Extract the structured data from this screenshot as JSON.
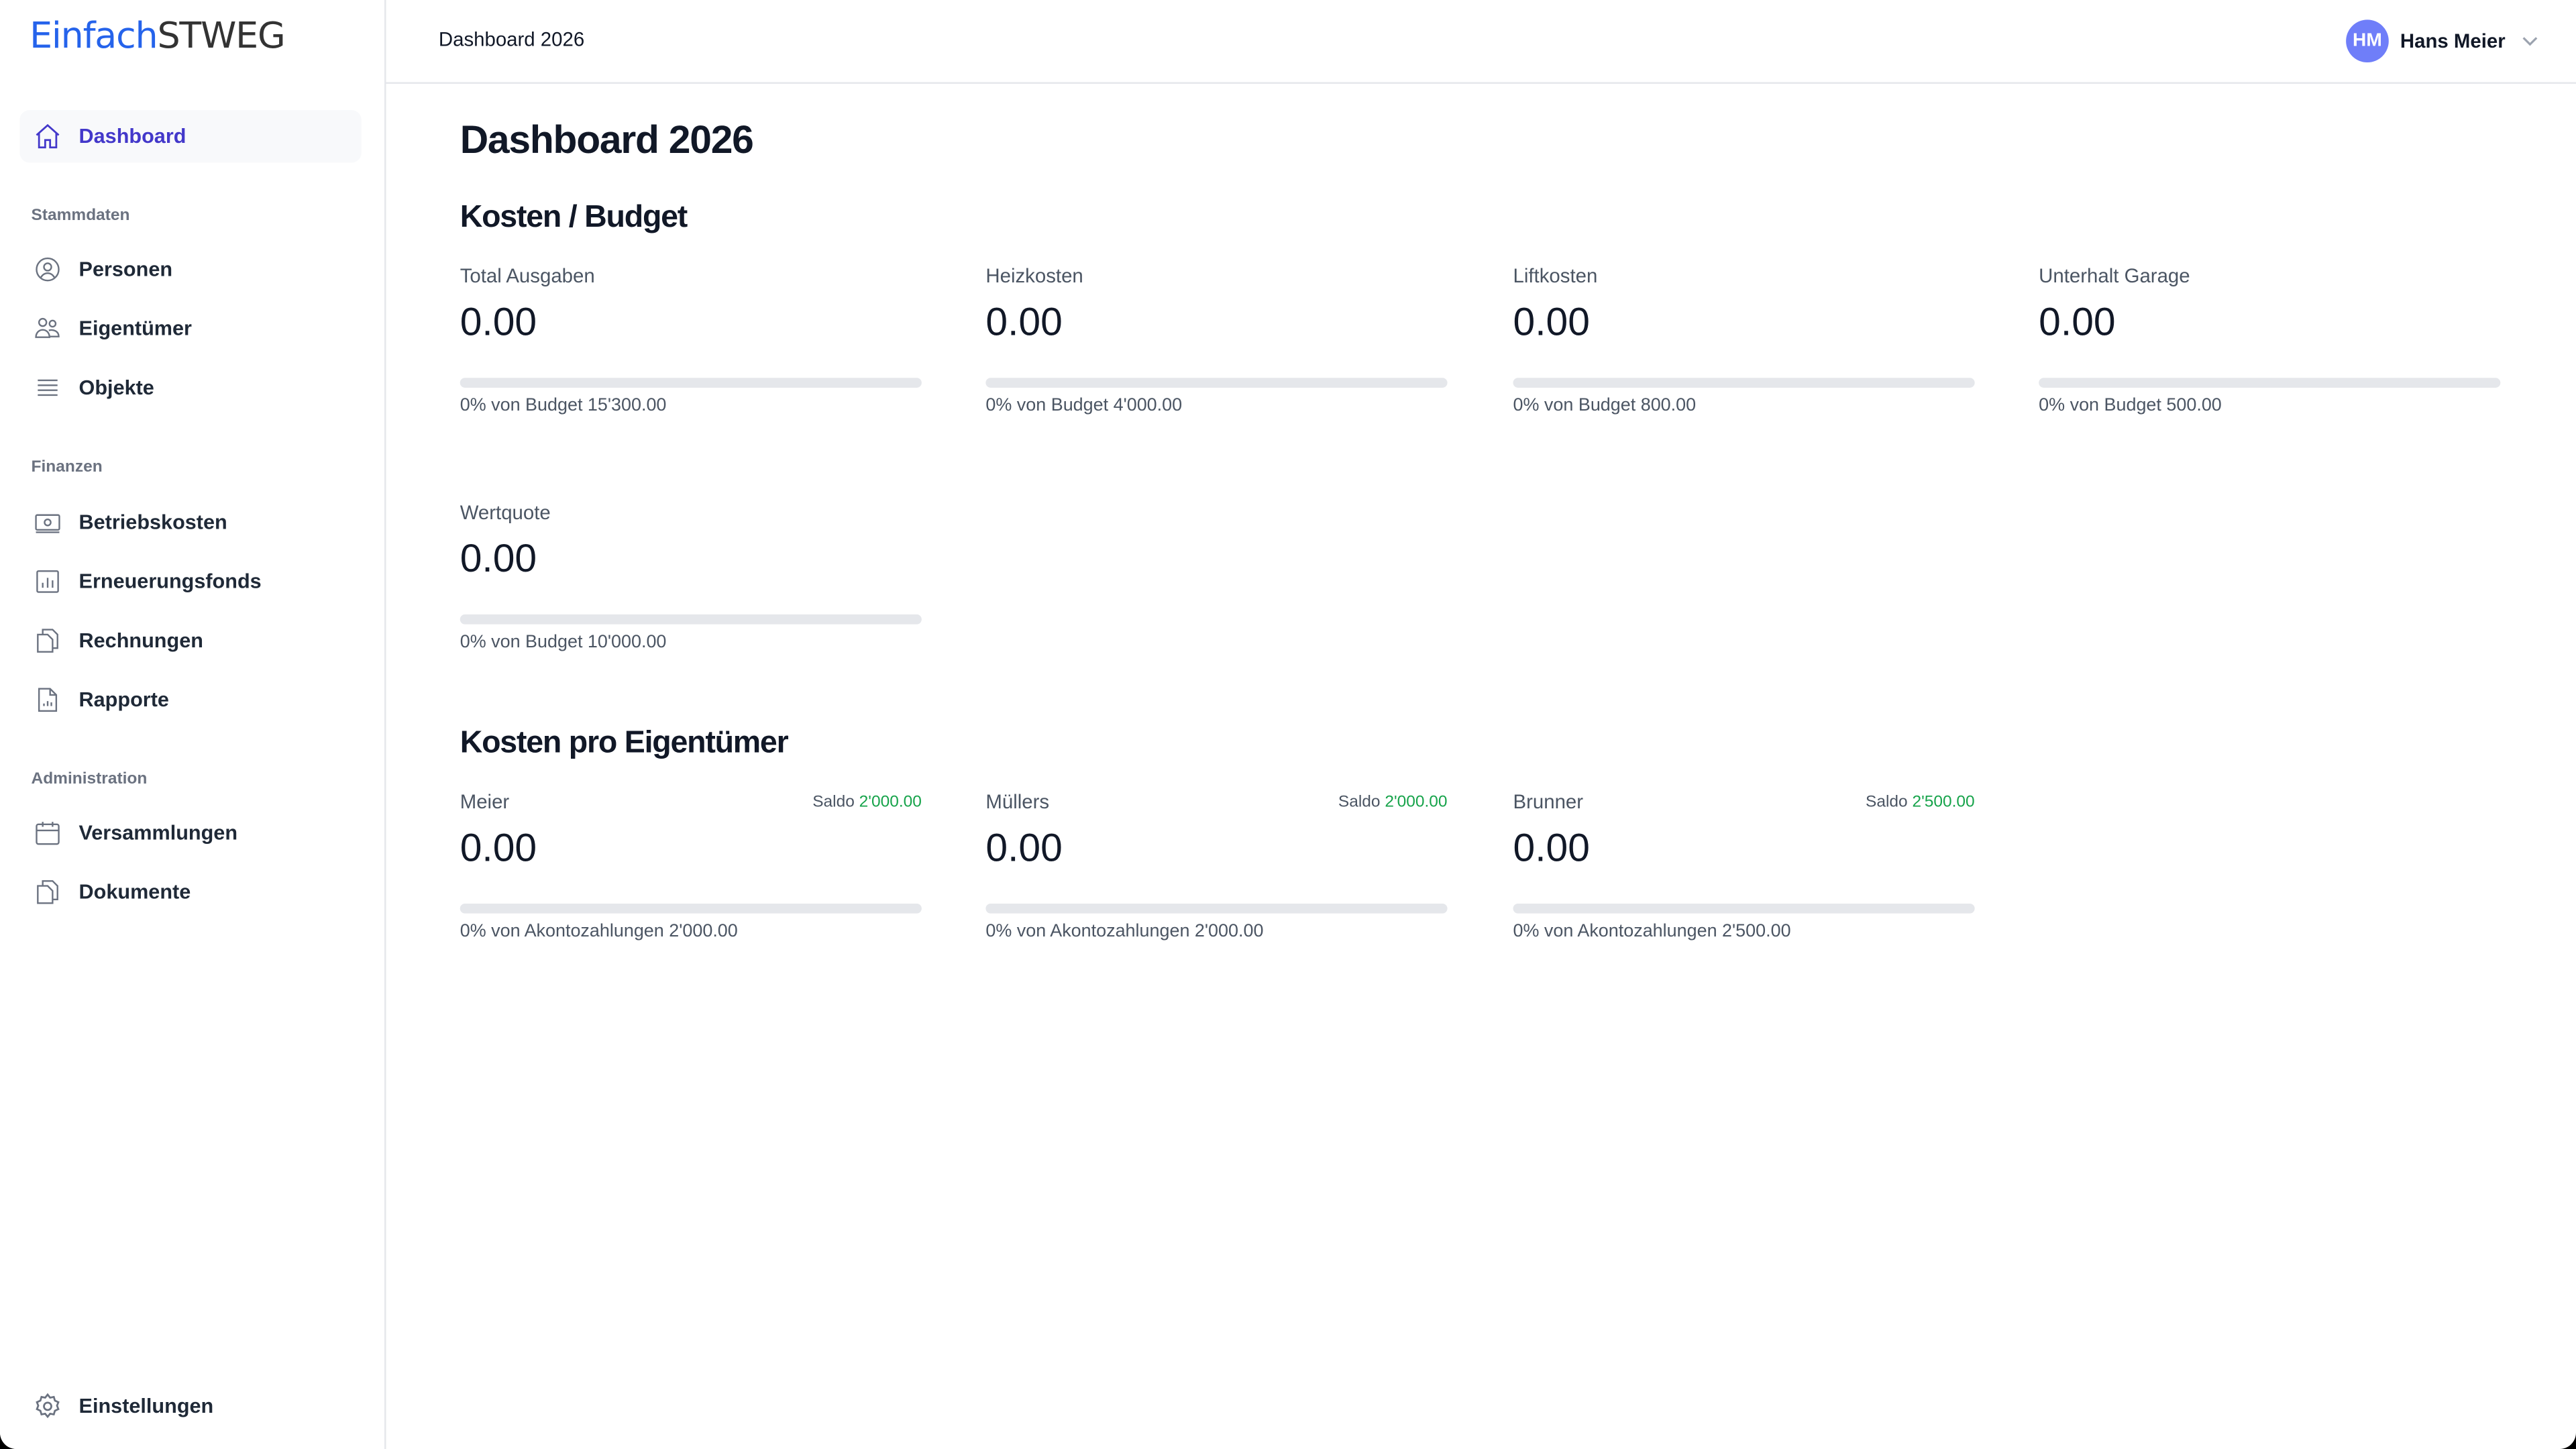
{
  "app": {
    "logo_part1": "Einfach",
    "logo_part2": "STWEG"
  },
  "sidebar": {
    "dashboard": "Dashboard",
    "sections": [
      {
        "label": "Stammdaten",
        "items": [
          {
            "label": "Personen",
            "icon": "user-circle-icon"
          },
          {
            "label": "Eigentümer",
            "icon": "users-icon"
          },
          {
            "label": "Objekte",
            "icon": "list-icon"
          }
        ]
      },
      {
        "label": "Finanzen",
        "items": [
          {
            "label": "Betriebskosten",
            "icon": "banknote-icon"
          },
          {
            "label": "Erneuerungsfonds",
            "icon": "chart-bar-icon"
          },
          {
            "label": "Rechnungen",
            "icon": "documents-icon"
          },
          {
            "label": "Rapporte",
            "icon": "document-chart-icon"
          }
        ]
      },
      {
        "label": "Administration",
        "items": [
          {
            "label": "Versammlungen",
            "icon": "calendar-icon"
          },
          {
            "label": "Dokumente",
            "icon": "documents-icon"
          }
        ]
      }
    ],
    "settings": "Einstellungen"
  },
  "header": {
    "breadcrumb": "Dashboard 2026",
    "user_initials": "HM",
    "user_name": "Hans Meier"
  },
  "main": {
    "title": "Dashboard 2026",
    "budget_heading": "Kosten / Budget",
    "budget_cards": [
      {
        "label": "Total Ausgaben",
        "value": "0.00",
        "percent": 0,
        "caption": "0% von Budget 15'300.00"
      },
      {
        "label": "Heizkosten",
        "value": "0.00",
        "percent": 0,
        "caption": "0% von Budget 4'000.00"
      },
      {
        "label": "Liftkosten",
        "value": "0.00",
        "percent": 0,
        "caption": "0% von Budget 800.00"
      },
      {
        "label": "Unterhalt Garage",
        "value": "0.00",
        "percent": 0,
        "caption": "0% von Budget 500.00"
      },
      {
        "label": "Wertquote",
        "value": "0.00",
        "percent": 0,
        "caption": "0% von Budget 10'000.00"
      }
    ],
    "owner_heading": "Kosten pro Eigentümer",
    "owner_cards": [
      {
        "label": "Meier",
        "saldo_label": "Saldo",
        "saldo": "2'000.00",
        "value": "0.00",
        "percent": 0,
        "caption": "0% von Akontozahlungen 2'000.00"
      },
      {
        "label": "Müllers",
        "saldo_label": "Saldo",
        "saldo": "2'000.00",
        "value": "0.00",
        "percent": 0,
        "caption": "0% von Akontozahlungen 2'000.00"
      },
      {
        "label": "Brunner",
        "saldo_label": "Saldo",
        "saldo": "2'500.00",
        "value": "0.00",
        "percent": 0,
        "caption": "0% von Akontozahlungen 2'500.00"
      }
    ]
  },
  "colors": {
    "accent": "#4338ca",
    "logo_blue": "#2563eb",
    "avatar": "#6f7ef9",
    "saldo_positive": "#16a34a"
  }
}
